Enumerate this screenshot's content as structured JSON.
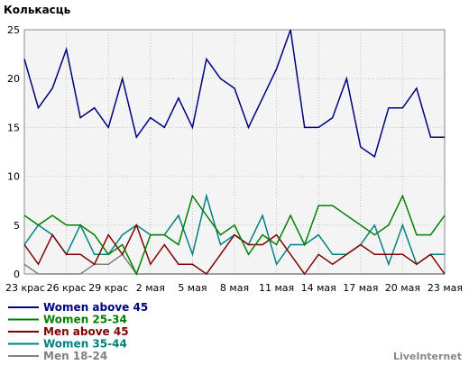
{
  "chart_data": {
    "type": "line",
    "title": "",
    "ylabel": "Колькасць",
    "xlabel": "",
    "ylim": [
      0,
      25
    ],
    "yticks": [
      0,
      5,
      10,
      15,
      20,
      25
    ],
    "x_tick_labels": [
      "23 крас",
      "26 крас",
      "29 крас",
      "2 мая",
      "5 мая",
      "8 мая",
      "11 мая",
      "14 мая",
      "17 мая",
      "20 мая",
      "23 мая"
    ],
    "grid": true,
    "legend_position": "bottom-left",
    "series": [
      {
        "name": "Women above 45",
        "color": "#000080",
        "values": [
          22,
          17,
          19,
          23,
          16,
          17,
          15,
          20,
          14,
          16,
          15,
          18,
          15,
          22,
          20,
          19,
          15,
          18,
          21,
          25,
          15,
          15,
          16,
          20,
          13,
          12,
          17,
          17,
          19,
          14,
          14
        ]
      },
      {
        "name": "Women 25-34",
        "color": "#008000",
        "values": [
          6,
          5,
          6,
          5,
          5,
          4,
          2,
          3,
          0,
          4,
          4,
          3,
          8,
          6,
          4,
          5,
          2,
          4,
          3,
          6,
          3,
          7,
          7,
          6,
          5,
          4,
          5,
          8,
          4,
          4,
          6
        ]
      },
      {
        "name": "Men above 45",
        "color": "#800000",
        "values": [
          3,
          1,
          4,
          2,
          2,
          1,
          4,
          2,
          5,
          1,
          3,
          1,
          1,
          0,
          2,
          4,
          3,
          3,
          4,
          2,
          0,
          2,
          1,
          2,
          3,
          2,
          2,
          2,
          1,
          2,
          0
        ]
      },
      {
        "name": "Women 35-44",
        "color": "#008080",
        "values": [
          3,
          5,
          4,
          2,
          5,
          2,
          2,
          4,
          5,
          4,
          4,
          6,
          2,
          8,
          3,
          4,
          3,
          6,
          1,
          3,
          3,
          4,
          2,
          2,
          3,
          5,
          1,
          5,
          1,
          2,
          2
        ]
      },
      {
        "name": "Men 18-24",
        "color": "#808080",
        "values": [
          1,
          0,
          0,
          0,
          0,
          1,
          1,
          2,
          0,
          0,
          0,
          0,
          0,
          0,
          0,
          0,
          0,
          0,
          0,
          0,
          0,
          0,
          0,
          0,
          0,
          0,
          0,
          0,
          0,
          0,
          0
        ]
      }
    ]
  },
  "brand": "LiveInternet"
}
